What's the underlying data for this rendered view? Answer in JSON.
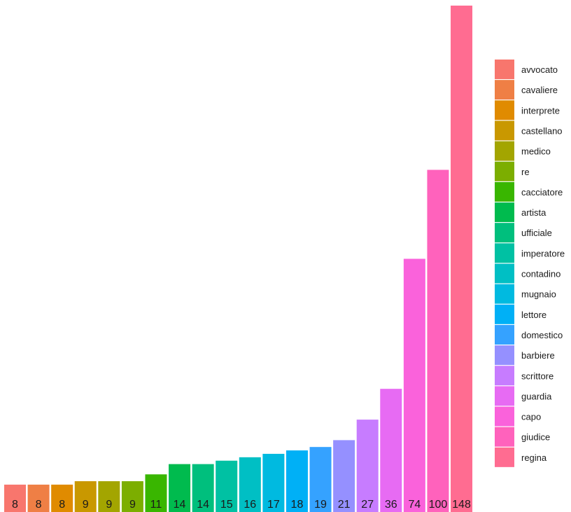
{
  "chart_data": {
    "type": "bar",
    "title": "",
    "xlabel": "",
    "ylabel": "",
    "ylim": [
      0,
      148
    ],
    "grid": false,
    "legend": "right",
    "categories": [
      "avvocato",
      "cavaliere",
      "interprete",
      "castellano",
      "medico",
      "re",
      "cacciatore",
      "artista",
      "ufficiale",
      "imperatore",
      "contadino",
      "mugnaio",
      "lettore",
      "domestico",
      "barbiere",
      "scrittore",
      "guardia",
      "capo",
      "giudice",
      "regina"
    ],
    "values": [
      8,
      8,
      8,
      9,
      9,
      9,
      11,
      14,
      14,
      15,
      16,
      17,
      18,
      19,
      21,
      27,
      36,
      74,
      100,
      148
    ],
    "value_labels": [
      "8",
      "8",
      "8",
      "9",
      "9",
      "9",
      "11",
      "14",
      "14",
      "15",
      "16",
      "17",
      "18",
      "19",
      "21",
      "27",
      "36",
      "74",
      "100",
      "148"
    ],
    "colors": [
      "#F8766D",
      "#EF7F45",
      "#E08B00",
      "#C99800",
      "#A3A500",
      "#7CAE00",
      "#39B600",
      "#00BB4E",
      "#00BF7D",
      "#00C1A3",
      "#00BFC4",
      "#00BAE0",
      "#00B0F6",
      "#35A2FF",
      "#9590FF",
      "#C77CFF",
      "#E76BF3",
      "#FA62DB",
      "#FF62BC",
      "#FF6C91"
    ]
  }
}
